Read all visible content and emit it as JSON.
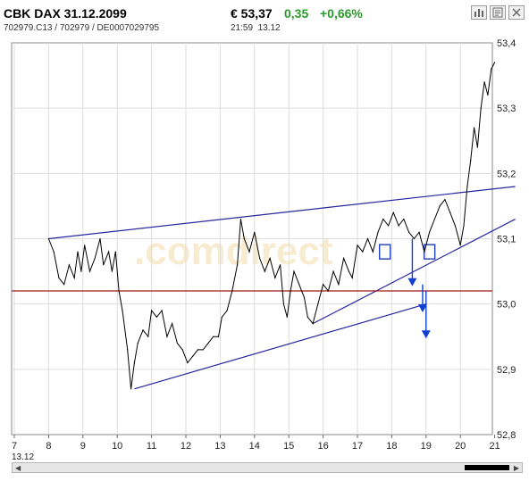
{
  "header": {
    "title": "CBK DAX 31.12.2099",
    "ids": "702979.C13  /  702979  /  DE0007029795",
    "price": "€ 53,37",
    "change": "0,35",
    "change_pct": "+0,66%",
    "time": "21:59",
    "date": "13.12",
    "toolbar": [
      {
        "icon": "bar-chart-icon"
      },
      {
        "icon": "news-icon"
      },
      {
        "icon": "close-icon"
      }
    ]
  },
  "watermark": ".comdirect",
  "chart_data": {
    "type": "line",
    "x_ticks": [
      "7",
      "8",
      "9",
      "10",
      "11",
      "12",
      "13",
      "14",
      "15",
      "16",
      "17",
      "18",
      "19",
      "20",
      "21"
    ],
    "x_start_label": "13.12",
    "y_ticks": [
      "53,4",
      "53,3",
      "53,2",
      "53,1",
      "53,0",
      "52,9",
      "52,8"
    ],
    "ylim": [
      52.8,
      53.4
    ],
    "grid": true,
    "series": [
      {
        "values": [
          [
            8.0,
            53.1
          ],
          [
            8.15,
            53.08
          ],
          [
            8.3,
            53.04
          ],
          [
            8.45,
            53.03
          ],
          [
            8.6,
            53.06
          ],
          [
            8.75,
            53.04
          ],
          [
            8.85,
            53.08
          ],
          [
            8.95,
            53.05
          ],
          [
            9.05,
            53.09
          ],
          [
            9.2,
            53.05
          ],
          [
            9.35,
            53.07
          ],
          [
            9.5,
            53.1
          ],
          [
            9.6,
            53.06
          ],
          [
            9.75,
            53.08
          ],
          [
            9.85,
            53.05
          ],
          [
            9.95,
            53.08
          ],
          [
            10.05,
            53.02
          ],
          [
            10.15,
            52.99
          ],
          [
            10.3,
            52.93
          ],
          [
            10.4,
            52.87
          ],
          [
            10.5,
            52.91
          ],
          [
            10.6,
            52.94
          ],
          [
            10.75,
            52.96
          ],
          [
            10.9,
            52.95
          ],
          [
            11.0,
            52.99
          ],
          [
            11.15,
            52.98
          ],
          [
            11.3,
            52.99
          ],
          [
            11.45,
            52.95
          ],
          [
            11.6,
            52.97
          ],
          [
            11.75,
            52.94
          ],
          [
            11.9,
            52.93
          ],
          [
            12.05,
            52.91
          ],
          [
            12.2,
            52.92
          ],
          [
            12.35,
            52.93
          ],
          [
            12.5,
            52.93
          ],
          [
            12.65,
            52.94
          ],
          [
            12.8,
            52.95
          ],
          [
            12.95,
            52.95
          ],
          [
            13.05,
            52.98
          ],
          [
            13.2,
            52.99
          ],
          [
            13.35,
            53.02
          ],
          [
            13.5,
            53.06
          ],
          [
            13.6,
            53.13
          ],
          [
            13.7,
            53.1
          ],
          [
            13.85,
            53.08
          ],
          [
            14.0,
            53.11
          ],
          [
            14.15,
            53.07
          ],
          [
            14.3,
            53.05
          ],
          [
            14.45,
            53.07
          ],
          [
            14.6,
            53.04
          ],
          [
            14.75,
            53.06
          ],
          [
            14.85,
            53.0
          ],
          [
            14.95,
            52.98
          ],
          [
            15.05,
            53.02
          ],
          [
            15.15,
            53.05
          ],
          [
            15.3,
            53.03
          ],
          [
            15.45,
            53.01
          ],
          [
            15.55,
            52.98
          ],
          [
            15.7,
            52.97
          ],
          [
            15.85,
            53.0
          ],
          [
            16.0,
            53.03
          ],
          [
            16.15,
            53.02
          ],
          [
            16.3,
            53.05
          ],
          [
            16.45,
            53.03
          ],
          [
            16.6,
            53.07
          ],
          [
            16.75,
            53.05
          ],
          [
            16.85,
            53.04
          ],
          [
            17.0,
            53.09
          ],
          [
            17.15,
            53.08
          ],
          [
            17.3,
            53.1
          ],
          [
            17.45,
            53.08
          ],
          [
            17.6,
            53.11
          ],
          [
            17.75,
            53.13
          ],
          [
            17.9,
            53.12
          ],
          [
            18.05,
            53.14
          ],
          [
            18.2,
            53.12
          ],
          [
            18.35,
            53.13
          ],
          [
            18.5,
            53.11
          ],
          [
            18.65,
            53.1
          ],
          [
            18.8,
            53.11
          ],
          [
            18.95,
            53.08
          ],
          [
            19.1,
            53.11
          ],
          [
            19.25,
            53.13
          ],
          [
            19.4,
            53.15
          ],
          [
            19.55,
            53.16
          ],
          [
            19.7,
            53.14
          ],
          [
            19.85,
            53.12
          ],
          [
            20.0,
            53.09
          ],
          [
            20.1,
            53.12
          ],
          [
            20.2,
            53.18
          ],
          [
            20.3,
            53.22
          ],
          [
            20.4,
            53.27
          ],
          [
            20.5,
            53.24
          ],
          [
            20.6,
            53.3
          ],
          [
            20.7,
            53.34
          ],
          [
            20.8,
            53.32
          ],
          [
            20.9,
            53.36
          ],
          [
            21.0,
            53.37
          ]
        ]
      }
    ],
    "annotations": [
      {
        "kind": "trendline",
        "color": "#2626a0",
        "from": [
          8.0,
          53.1
        ],
        "to": [
          21.6,
          53.18
        ]
      },
      {
        "kind": "trendline",
        "color": "#2626a0",
        "from": [
          10.5,
          52.87
        ],
        "to": [
          19.0,
          53.0
        ]
      },
      {
        "kind": "trendline",
        "color": "#2626a0",
        "from": [
          15.7,
          52.97
        ],
        "to": [
          21.6,
          53.13
        ]
      },
      {
        "kind": "horizontal-line",
        "color": "#9a1a1a",
        "y": 53.02
      },
      {
        "kind": "marker-box",
        "color": "#2040c0",
        "at": [
          17.8,
          53.08
        ]
      },
      {
        "kind": "marker-box",
        "color": "#2040c0",
        "at": [
          19.1,
          53.08
        ]
      },
      {
        "kind": "arrow-down",
        "color": "#1040d0",
        "from": [
          18.6,
          53.1
        ],
        "to": [
          18.6,
          53.03
        ]
      },
      {
        "kind": "arrow-down",
        "color": "#1040d0",
        "from": [
          18.9,
          53.03
        ],
        "to": [
          18.9,
          52.99
        ]
      },
      {
        "kind": "arrow-down",
        "color": "#1040d0",
        "from": [
          19.0,
          53.02
        ],
        "to": [
          19.0,
          52.95
        ]
      }
    ]
  }
}
